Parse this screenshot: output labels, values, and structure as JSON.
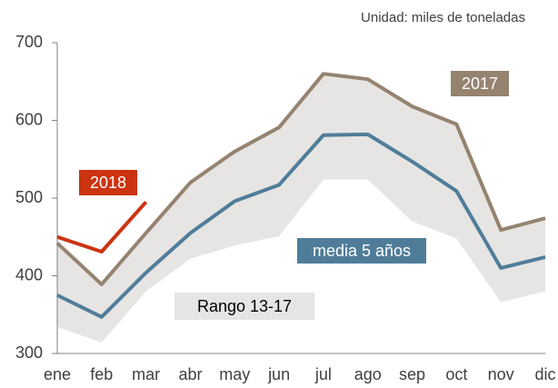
{
  "chart_data": {
    "type": "line",
    "subtitle": "Unidad: miles de toneladas",
    "categories": [
      "ene",
      "feb",
      "mar",
      "abr",
      "may",
      "jun",
      "jul",
      "ago",
      "sep",
      "oct",
      "nov",
      "dic"
    ],
    "range": {
      "name": "Rango 13-17",
      "color": "#e6e5e3",
      "lower": [
        334,
        314,
        380,
        422,
        439,
        451,
        524,
        524,
        470,
        448,
        366,
        380
      ],
      "upper": [
        445,
        390,
        455,
        520,
        560,
        591,
        660,
        653,
        618,
        595,
        460,
        474
      ]
    },
    "series": [
      {
        "name": "2017",
        "color": "#958370",
        "values": [
          442,
          389,
          455,
          520,
          560,
          591,
          660,
          653,
          618,
          595,
          459,
          474
        ]
      },
      {
        "name": "media 5 años",
        "color": "#4f7d99",
        "values": [
          375,
          347,
          404,
          455,
          496,
          517,
          581,
          582,
          547,
          509,
          410,
          424
        ]
      },
      {
        "name": "2018",
        "color": "#cc3311",
        "values": [
          450,
          431,
          495,
          null,
          null,
          null,
          null,
          null,
          null,
          null,
          null,
          null
        ]
      }
    ],
    "ylim": [
      300,
      700
    ],
    "yticks": [
      300,
      400,
      500,
      600,
      700
    ]
  }
}
